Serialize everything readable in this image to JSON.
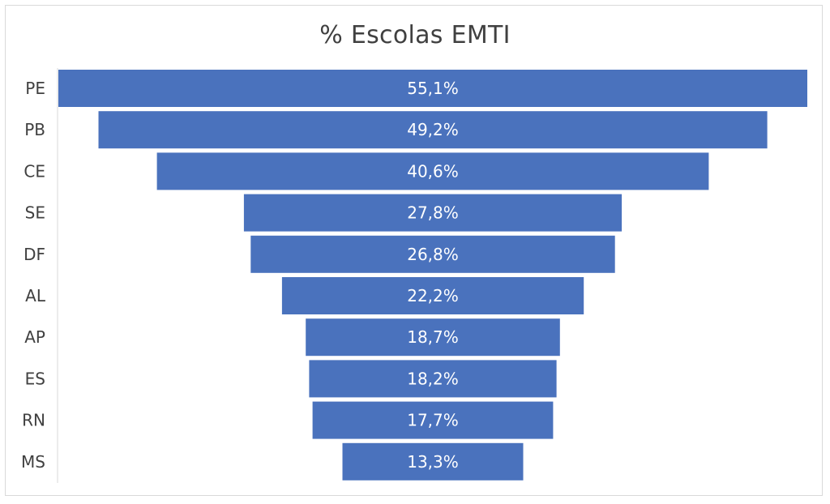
{
  "chart_data": {
    "type": "bar",
    "variant": "funnel",
    "title": "% Escolas EMTI",
    "categories": [
      "PE",
      "PB",
      "CE",
      "SE",
      "DF",
      "AL",
      "AP",
      "ES",
      "RN",
      "MS"
    ],
    "values": [
      55.1,
      49.2,
      40.6,
      27.8,
      26.8,
      22.2,
      18.7,
      18.2,
      17.7,
      13.3
    ],
    "data_labels": [
      "55,1%",
      "49,2%",
      "40,6%",
      "27,8%",
      "26,8%",
      "22,2%",
      "18,7%",
      "18,2%",
      "17,7%",
      "13,3%"
    ],
    "bar_color": "#4a72bd",
    "grid": false,
    "legend": "none"
  }
}
